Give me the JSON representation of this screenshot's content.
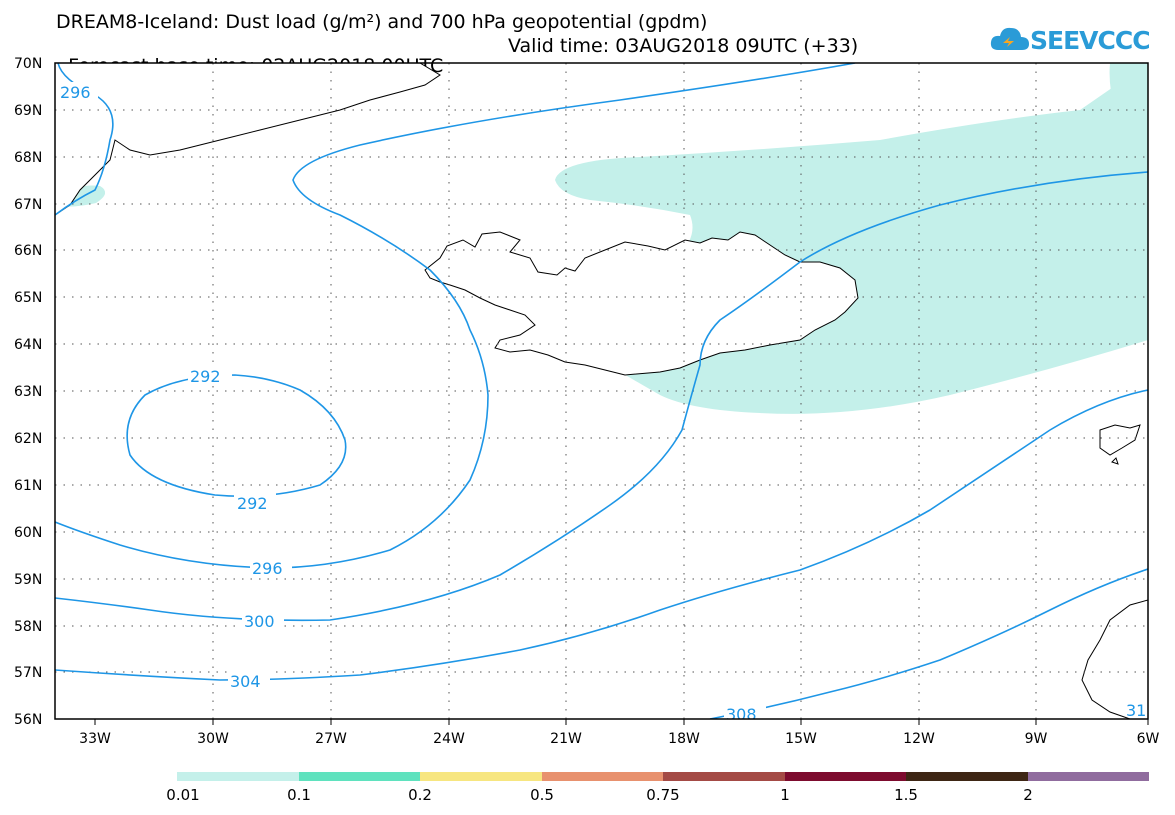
{
  "title": {
    "line1": "DREAM8-Iceland: Dust load (g/m²) and 700 hPa geopotential (gpdm)",
    "base_time": "Forecast base time: 02AUG2018 00UTC",
    "valid_time": "Valid time: 03AUG2018 09UTC (+33)"
  },
  "logo": {
    "text": "SEEVCCC",
    "icon": "cloud-icon"
  },
  "map": {
    "lon_range": [
      -34.5,
      -6
    ],
    "lat_range": [
      56,
      70
    ],
    "lat_ticks": [
      "70N",
      "69N",
      "68N",
      "67N",
      "66N",
      "65N",
      "64N",
      "63N",
      "62N",
      "61N",
      "60N",
      "59N",
      "58N",
      "57N",
      "56N"
    ],
    "lon_ticks": [
      "33W",
      "30W",
      "27W",
      "24W",
      "21W",
      "18W",
      "15W",
      "12W",
      "9W",
      "6W"
    ],
    "gridlines": true,
    "contour_color": "#1e96e6",
    "contour_labels": [
      "296",
      "292",
      "292",
      "296",
      "300",
      "304",
      "308",
      "31"
    ]
  },
  "colorbar": {
    "labels": [
      "0.01",
      "0.1",
      "0.2",
      "0.5",
      "0.75",
      "1",
      "1.5",
      "2"
    ],
    "colors": [
      "#c4f0ea",
      "#5fe2be",
      "#f7e680",
      "#e8916e",
      "#a44a45",
      "#7d0b2e",
      "#3e2614",
      "#906c9e"
    ]
  }
}
